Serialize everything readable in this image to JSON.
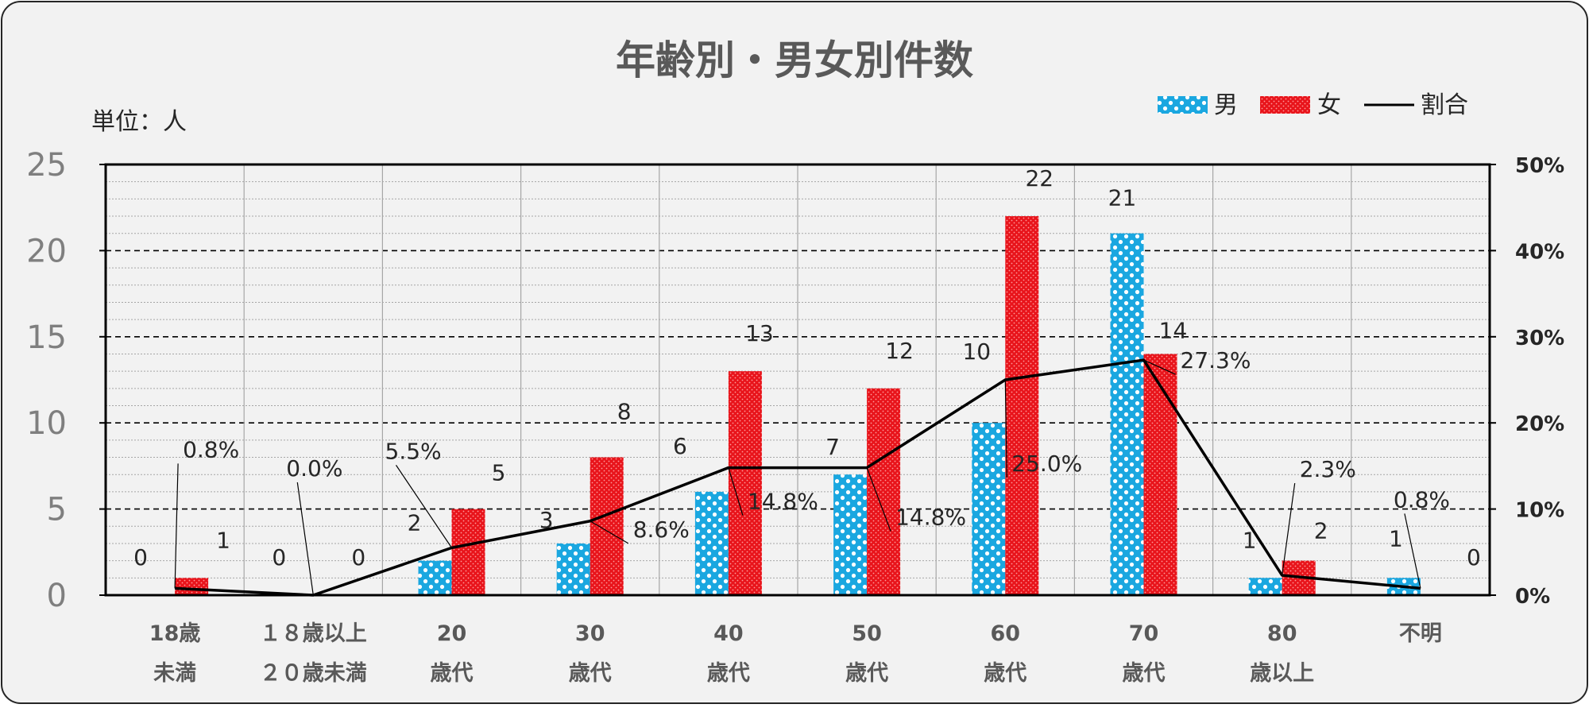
{
  "colors": {
    "male": "#1aa7e0",
    "female": "#e8141b",
    "ratio": "#000000",
    "panel": "#f2f2f2"
  },
  "chart_data": {
    "type": "bar",
    "title": "年齢別・男女別件数",
    "unit_label": "単位：人",
    "categories": [
      [
        "18歳",
        "未満"
      ],
      [
        "１８歳以上",
        "２０歳未満"
      ],
      [
        "20",
        "歳代"
      ],
      [
        "30",
        "歳代"
      ],
      [
        "40",
        "歳代"
      ],
      [
        "50",
        "歳代"
      ],
      [
        "60",
        "歳代"
      ],
      [
        "70",
        "歳代"
      ],
      [
        "80",
        "歳以上"
      ],
      [
        "不明"
      ]
    ],
    "series": [
      {
        "name": "男",
        "kind": "bar",
        "axis": "left",
        "values": [
          0,
          0,
          2,
          3,
          6,
          7,
          10,
          21,
          1,
          1
        ]
      },
      {
        "name": "女",
        "kind": "bar",
        "axis": "left",
        "values": [
          1,
          0,
          5,
          8,
          13,
          12,
          22,
          14,
          2,
          0
        ]
      },
      {
        "name": "割合",
        "kind": "line",
        "axis": "right",
        "values": [
          0.8,
          0.0,
          5.5,
          8.6,
          14.8,
          14.8,
          25.0,
          27.3,
          2.3,
          0.8
        ]
      }
    ],
    "ratio_labels": [
      "0.8%",
      "0.0%",
      "5.5%",
      "8.6%",
      "14.8%",
      "14.8%",
      "25.0%",
      "27.3%",
      "2.3%",
      "0.8%"
    ],
    "y_left": {
      "min": 0,
      "max": 25,
      "ticks": [
        "0",
        "5",
        "10",
        "15",
        "20",
        "25"
      ]
    },
    "y_right": {
      "min": 0,
      "max": 50,
      "ticks": [
        "0%",
        "10%",
        "20%",
        "30%",
        "40%",
        "50%"
      ]
    },
    "legend_position": "top-right",
    "grid": "dashed major, dotted minor"
  }
}
